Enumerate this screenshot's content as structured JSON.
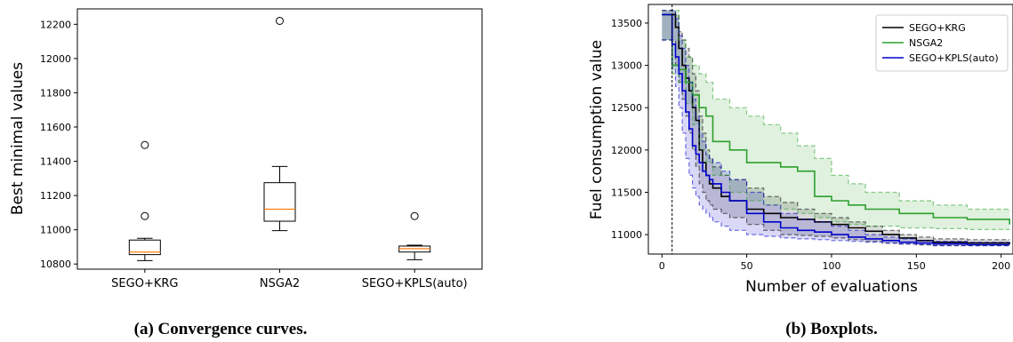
{
  "chart_data": [
    {
      "type": "box",
      "categories": [
        "SEGO+KRG",
        "NSGA2",
        "SEGO+KPLS(auto)"
      ],
      "ylabel": "Best minimal values",
      "ylim": [
        10770,
        12290
      ],
      "yticks": [
        10800,
        11000,
        11200,
        11400,
        11600,
        11800,
        12000,
        12200
      ],
      "boxes": [
        {
          "name": "SEGO+KRG",
          "whisker_low": 10820,
          "q1": 10855,
          "median": 10870,
          "q3": 10940,
          "whisker_high": 10950,
          "outliers": [
            11080,
            11495
          ]
        },
        {
          "name": "NSGA2",
          "whisker_low": 10995,
          "q1": 11050,
          "median": 11120,
          "q3": 11275,
          "whisker_high": 11370,
          "outliers": [
            12220
          ]
        },
        {
          "name": "SEGO+KPLS(auto)",
          "whisker_low": 10825,
          "q1": 10870,
          "median": 10890,
          "q3": 10905,
          "whisker_high": 10910,
          "outliers": [
            11080
          ]
        }
      ],
      "caption": "(a) Convergence curves.",
      "colors": {
        "box": "#000000",
        "median": "#ff7f0e"
      }
    },
    {
      "type": "line",
      "xlabel": "Number of evaluations",
      "ylabel": "Fuel consumption value",
      "xlim": [
        -8,
        207
      ],
      "ylim": [
        10770,
        13720
      ],
      "xticks": [
        0,
        50,
        100,
        150,
        200
      ],
      "yticks": [
        11000,
        11500,
        12000,
        12500,
        13000,
        13500
      ],
      "vline_x": 6,
      "legend_position": "top-right",
      "series": [
        {
          "name": "SEGO+KRG",
          "color": "#000000",
          "x": [
            0,
            6,
            8,
            10,
            12,
            14,
            16,
            18,
            20,
            22,
            24,
            26,
            28,
            30,
            35,
            40,
            50,
            60,
            70,
            80,
            90,
            100,
            110,
            120,
            130,
            140,
            150,
            160,
            180,
            205
          ],
          "mean": [
            13600,
            13600,
            13450,
            13200,
            13000,
            12850,
            12700,
            12500,
            12350,
            12000,
            11850,
            11700,
            11600,
            11550,
            11450,
            11400,
            11300,
            11250,
            11200,
            11180,
            11150,
            11120,
            11080,
            11040,
            11000,
            10960,
            10930,
            10910,
            10900,
            10890
          ],
          "upper": [
            13650,
            13650,
            13600,
            13400,
            13300,
            13200,
            13100,
            12900,
            12700,
            12400,
            12200,
            12000,
            11900,
            11800,
            11700,
            11650,
            11550,
            11450,
            11380,
            11300,
            11250,
            11200,
            11150,
            11100,
            11050,
            11000,
            10970,
            10950,
            10940,
            10940
          ],
          "lower": [
            13300,
            13300,
            13000,
            12800,
            12600,
            12400,
            12200,
            12000,
            11800,
            11600,
            11500,
            11400,
            11350,
            11300,
            11250,
            11200,
            11120,
            11050,
            11000,
            10990,
            10980,
            10960,
            10940,
            10920,
            10900,
            10890,
            10880,
            10870,
            10870,
            10870
          ]
        },
        {
          "name": "NSGA2",
          "color": "#2ca02c",
          "x": [
            0,
            6,
            10,
            14,
            18,
            22,
            26,
            30,
            40,
            50,
            60,
            70,
            80,
            90,
            100,
            110,
            120,
            140,
            160,
            180,
            205
          ],
          "mean": [
            13600,
            13000,
            12950,
            12800,
            12650,
            12500,
            12400,
            12100,
            12000,
            11850,
            11850,
            11800,
            11750,
            11450,
            11400,
            11350,
            11300,
            11250,
            11200,
            11180,
            11120
          ],
          "upper": [
            13650,
            13650,
            13300,
            13100,
            13000,
            12900,
            12800,
            12600,
            12500,
            12400,
            12300,
            12200,
            12050,
            11900,
            11700,
            11600,
            11500,
            11400,
            11350,
            11300,
            11280
          ],
          "lower": [
            13300,
            12900,
            12800,
            12550,
            12300,
            12000,
            11850,
            11700,
            11500,
            11400,
            11350,
            11300,
            11250,
            11200,
            11150,
            11120,
            11100,
            11080,
            11070,
            11060,
            11060
          ]
        },
        {
          "name": "SEGO+KPLS(auto)",
          "color": "#0000cc",
          "x": [
            0,
            6,
            8,
            10,
            12,
            14,
            16,
            18,
            20,
            22,
            24,
            26,
            28,
            30,
            35,
            40,
            50,
            60,
            70,
            80,
            90,
            100,
            110,
            120,
            130,
            140,
            150,
            160,
            180,
            205
          ],
          "mean": [
            13600,
            13250,
            13100,
            12900,
            12700,
            12450,
            12250,
            12050,
            11950,
            11850,
            11750,
            11700,
            11650,
            11600,
            11500,
            11400,
            11250,
            11150,
            11080,
            11050,
            11030,
            11000,
            10970,
            10950,
            10930,
            10910,
            10900,
            10890,
            10880,
            10880
          ],
          "upper": [
            13650,
            13650,
            13550,
            13350,
            13200,
            13000,
            12800,
            12600,
            12400,
            12200,
            12100,
            11950,
            11900,
            11850,
            11750,
            11650,
            11500,
            11350,
            11250,
            11180,
            11150,
            11100,
            11050,
            11000,
            10970,
            10950,
            10930,
            10920,
            10910,
            10910
          ],
          "lower": [
            13300,
            12950,
            12750,
            12500,
            12200,
            11900,
            11700,
            11550,
            11450,
            11350,
            11300,
            11250,
            11200,
            11150,
            11100,
            11050,
            11000,
            10980,
            10960,
            10950,
            10940,
            10930,
            10920,
            10910,
            10900,
            10890,
            10880,
            10870,
            10870,
            10870
          ]
        }
      ],
      "caption": "(b) Boxplots."
    }
  ]
}
